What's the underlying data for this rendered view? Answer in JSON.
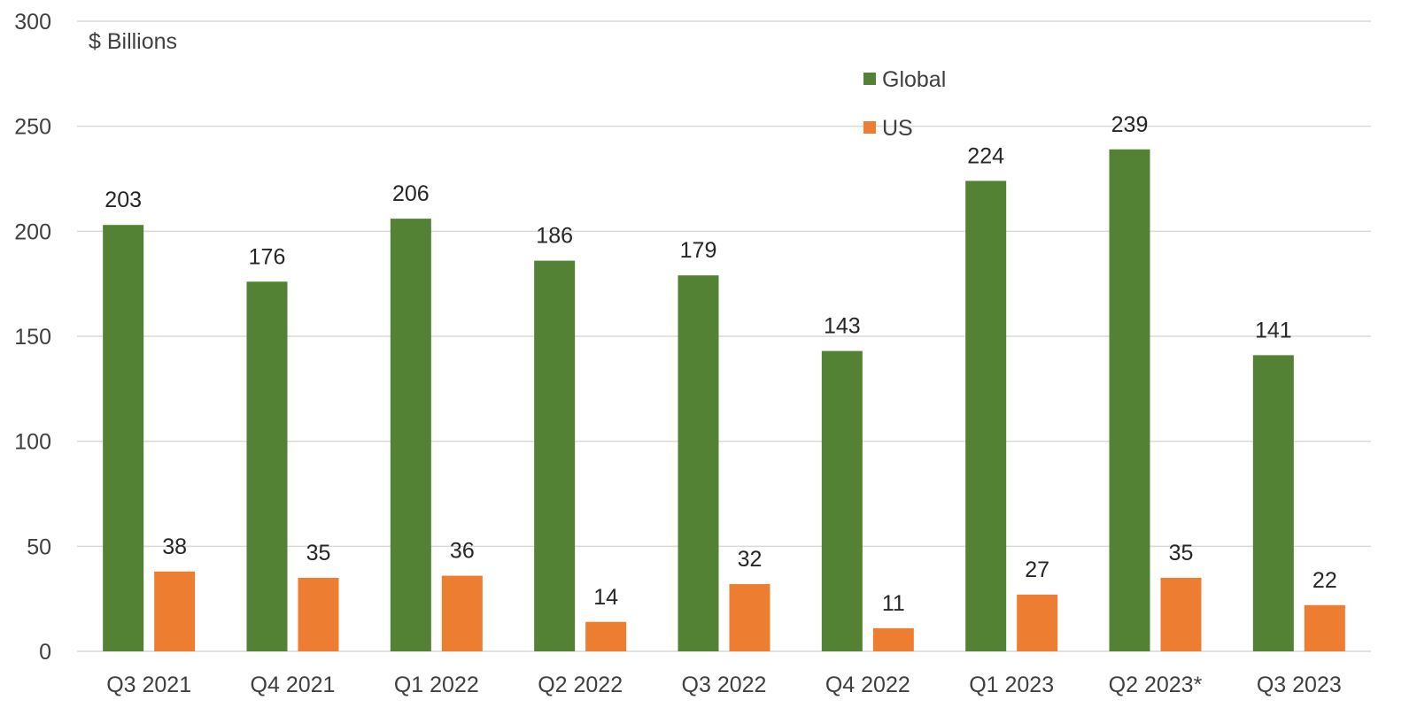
{
  "chart_data": {
    "type": "bar",
    "unit_label": "$ Billions",
    "categories": [
      "Q3 2021",
      "Q4 2021",
      "Q1 2022",
      "Q2 2022",
      "Q3 2022",
      "Q4 2022",
      "Q1 2023",
      "Q2 2023*",
      "Q3 2023"
    ],
    "series": [
      {
        "name": "Global",
        "color": "#548235",
        "values": [
          203,
          176,
          206,
          186,
          179,
          143,
          224,
          239,
          141
        ]
      },
      {
        "name": "US",
        "color": "#ed7d31",
        "values": [
          38,
          35,
          36,
          14,
          32,
          11,
          27,
          35,
          22
        ]
      }
    ],
    "ylim": [
      0,
      300
    ],
    "yticks": [
      0,
      50,
      100,
      150,
      200,
      250,
      300
    ],
    "grid": true,
    "legend_position": "top-right",
    "data_labels": true
  }
}
